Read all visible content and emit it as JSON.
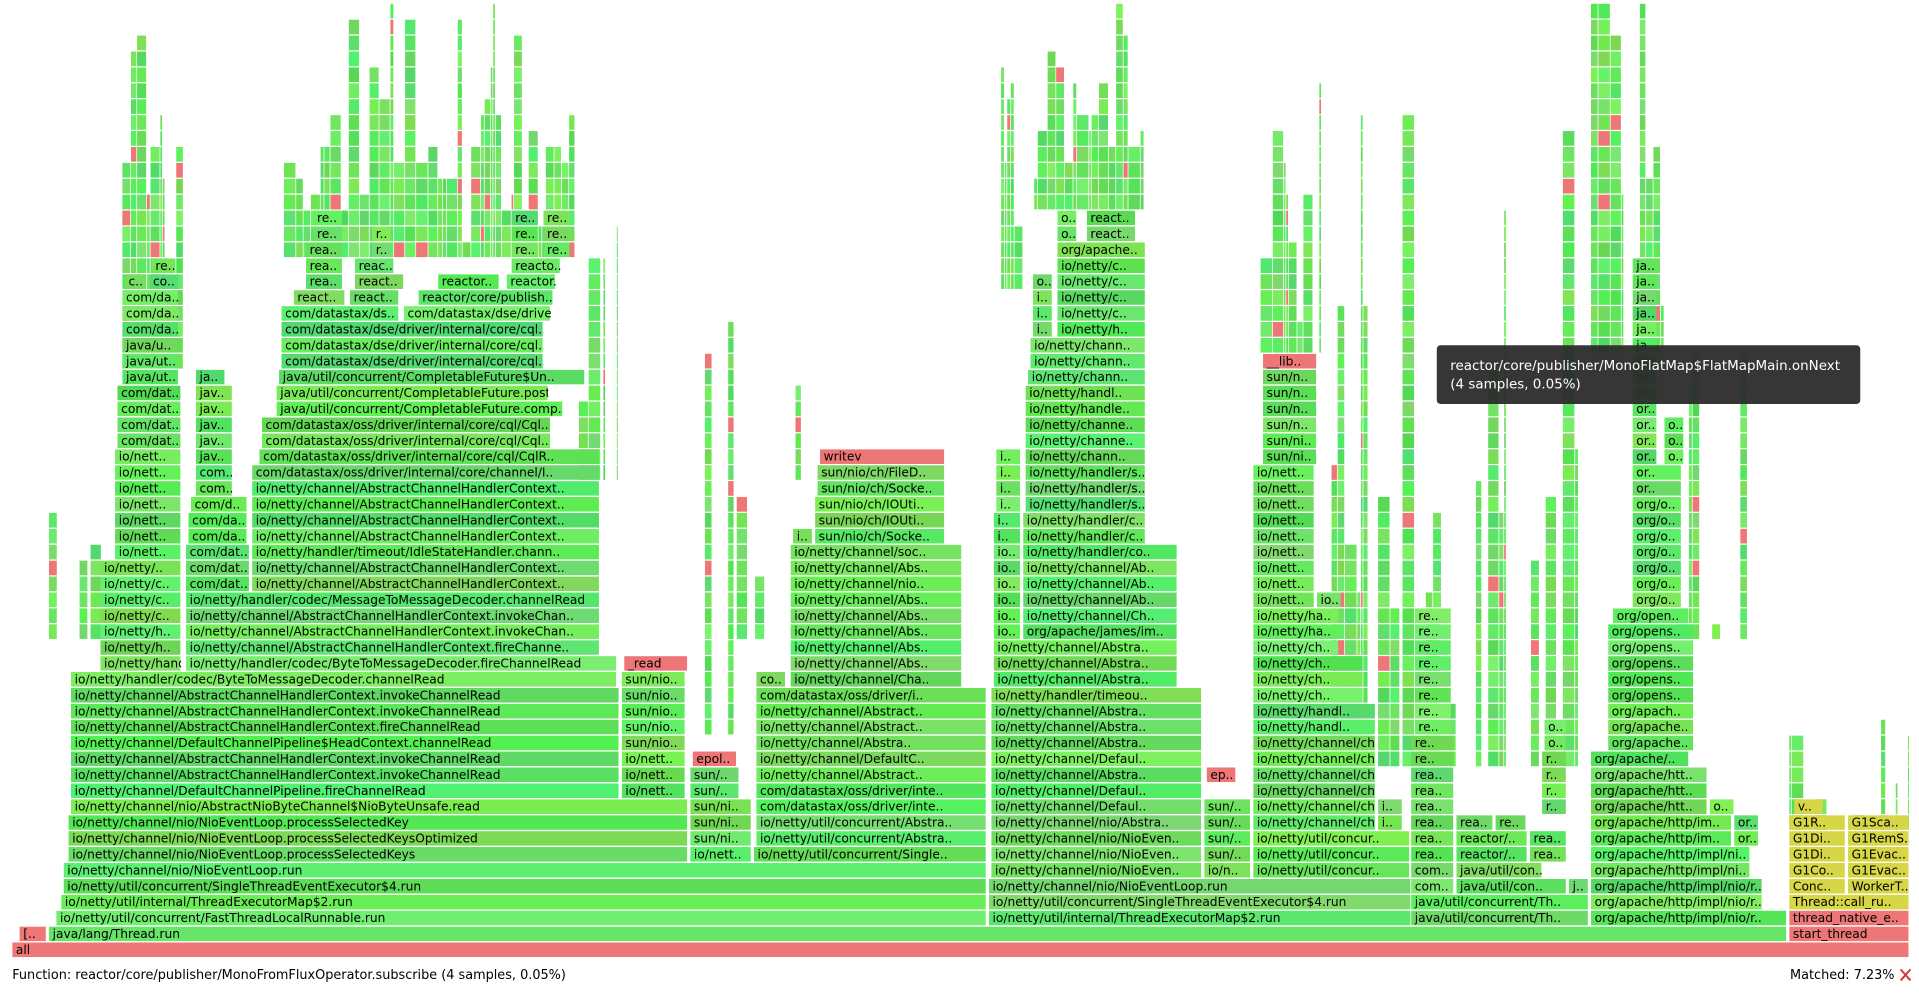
{
  "frames": [
    [
      "all"
    ],
    [
      "[..",
      "java/lang/Thread.run",
      "start_thread"
    ],
    [
      "io/netty/util/concurrent/FastThreadLocalRunnable.run",
      "io/netty/util/internal/ThreadExecutorMap$2.run",
      "java/util/concurrent/Th..",
      "org/apache/http/impl/nio/r..",
      "thread_native_e.."
    ],
    [
      "io/netty/util/internal/ThreadExecutorMap$2.run",
      "io/netty/util/concurrent/SingleThreadEventExecutor$4.run",
      "java/util/concurrent/Th..",
      "org/apache/http/impl/nio/r..",
      "Thread::call_ru.."
    ],
    [
      "io/netty/util/concurrent/SingleThreadEventExecutor$4.run",
      "io/netty/channel/nio/NioEventLoop.run",
      "com..",
      "java/util/con..",
      "j..",
      "org/apache/http/impl/nio/r..",
      "Conc..",
      "WorkerT.."
    ],
    [
      "io/netty/channel/nio/NioEventLoop.run",
      "io/netty/channel/nio/NioEven..",
      "io/n..",
      "io/netty/util/concur..",
      "com..",
      "java/util/con..",
      "org/apache/http/impl/ni..",
      "G1Co..",
      "G1Evac.."
    ],
    [
      "io/netty/channel/nio/NioEventLoop.processSelectedKeys",
      "io/nett..",
      "io/netty/util/concurrent/Single..",
      "io/netty/channel/nio/NioEven..",
      "sun/..",
      "io/netty/util/concur..",
      "rea..",
      "reactor/..",
      "rea..",
      "org/apache/http/impl/ni..",
      "G1Di..",
      "G1Evac.."
    ],
    [
      "io/netty/channel/nio/NioEventLoop.processSelectedKeysOptimized",
      "sun/ni..",
      "io/netty/util/concurrent/Abstra..",
      "io/netty/channel/nio/NioEven..",
      "sun/..",
      "io/netty/util/concur..",
      "rea..",
      "reactor/..",
      "rea..",
      "org/apache/http/im..",
      "or..",
      "G1Di..",
      "G1RemS.."
    ],
    [
      "io/netty/channel/nio/NioEventLoop.processSelectedKey",
      "sun/ni..",
      "io/netty/util/concurrent/Abstra..",
      "io/netty/channel/nio/Abstra..",
      "sun/..",
      "io/netty/channel/chann..",
      "i..",
      "rea..",
      "rea..",
      "re..",
      "org/apache/http/im..",
      "or..",
      "G1R..",
      "G1Sca.."
    ],
    [
      "io/netty/channel/nio/AbstractNioByteChannel$NioByteUnsafe.read",
      "sun/ni..",
      "com/datastax/oss/driver/inte..",
      "io/netty/channel/Defaul..",
      "sun/..",
      "io/netty/channel/chann..",
      "i..",
      "rea..",
      "r..",
      "org/apache/htt..",
      "o..",
      "v.."
    ],
    [
      "io/netty/channel/DefaultChannelPipeline.fireChannelRead",
      "io/nett..",
      "sun/..",
      "com/datastax/oss/driver/inte..",
      "io/netty/channel/Defaul..",
      "io/netty/channel/chann..",
      "rea..",
      "r..",
      "org/apache/htt.."
    ],
    [
      "io/netty/channel/AbstractChannelHandlerContext.invokeChannelRead",
      "io/nett..",
      "sun/..",
      "io/netty/channel/Abstract..",
      "io/netty/channel/Abstra..",
      "ep..",
      "io/netty/channel/chann..",
      "rea..",
      "r..",
      "org/apache/htt.."
    ],
    [
      "io/netty/channel/AbstractChannelHandlerContext.invokeChannelRead",
      "io/nett..",
      "epol..",
      "io/netty/channel/DefaultC..",
      "io/netty/channel/Defaul..",
      "io/netty/channel/chann..",
      "re..",
      "r..",
      "org/apache/.."
    ],
    [
      "io/netty/channel/DefaultChannelPipeline$HeadContext.channelRead",
      "sun/nio..",
      "io/netty/channel/Abstra..",
      "io/netty/channel/Abstra..",
      "io/netty/channel/chann..",
      "re..",
      "o..",
      "org/apache.."
    ],
    [
      "io/netty/channel/AbstractChannelHandlerContext.fireChannelRead",
      "sun/nio..",
      "io/netty/channel/Abstract..",
      "io/netty/channel/Abstra..",
      "io/netty/handl..",
      "re..",
      "o..",
      "org/apache.."
    ],
    [
      "io/netty/channel/AbstractChannelHandlerContext.invokeChannelRead",
      "sun/nio..",
      "io/netty/channel/Abstract..",
      "io/netty/channel/Abstra..",
      "io/netty/handl..",
      "re..",
      "org/apach.."
    ],
    [
      "io/netty/channel/AbstractChannelHandlerContext.invokeChannelRead",
      "sun/nio..",
      "com/datastax/oss/driver/i..",
      "io/netty/handler/timeou..",
      "io/netty/ch..",
      "re..",
      "org/opens.."
    ],
    [
      "io/netty/handler/codec/ByteToMessageDecoder.channelRead",
      "sun/nio..",
      "co..",
      "io/netty/channel/Cha..",
      "io/netty/channel/Abstra..",
      "io/netty/ch..",
      "re..",
      "org/opens.."
    ],
    [
      "io/netty/hand..",
      "io/netty/handler/codec/ByteToMessageDecoder.fireChannelRead",
      "_read",
      "io/netty/channel/Abs..",
      "io/netty/channel/Abstra..",
      "io/netty/ch..",
      "re..",
      "org/opens.."
    ],
    [
      "io/netty/h..",
      "io/netty/channel/AbstractChannelHandlerContext.fireChanne..",
      "io/netty/channel/Abs..",
      "io/netty/channel/Abstra..",
      "io/netty/ch..",
      "re..",
      "org/opens.."
    ],
    [
      "io/netty/h..",
      "io/netty/channel/AbstractChannelHandlerContext.invokeChan..",
      "io/netty/channel/Abs..",
      "io..",
      "org/apache/james/im..",
      "io/netty/ha..",
      "re..",
      "org/opens.."
    ],
    [
      "io/netty/c..",
      "io/netty/channel/AbstractChannelHandlerContext.invokeChan..",
      "io/netty/channel/Abs..",
      "io..",
      "io/netty/channel/Ch..",
      "io/netty/ha..",
      "re..",
      "org/open.."
    ],
    [
      "io/netty/c..",
      "io/netty/handler/codec/MessageToMessageDecoder.channelRead",
      "io/netty/channel/Abs..",
      "io..",
      "io/netty/channel/Ab..",
      "io/nett..",
      "io..",
      "org/o.."
    ],
    [
      "io/netty/c..",
      "com/dat..",
      "io/netty/channel/AbstractChannelHandlerContext..",
      "io/netty/channel/nio..",
      "io..",
      "io/netty/channel/Ab..",
      "io/nett..",
      "org/o.."
    ],
    [
      "io/netty/..",
      "com/dat..",
      "io/netty/channel/AbstractChannelHandlerContext..",
      "io/netty/channel/Abs..",
      "io..",
      "io/netty/channel/Ab..",
      "io/nett..",
      "org/o.."
    ],
    [
      "io/nett..",
      "com/dat..",
      "io/netty/handler/timeout/IdleStateHandler.chann..",
      "io/netty/channel/soc..",
      "io..",
      "io/netty/handler/co..",
      "io/nett..",
      "org/o.."
    ],
    [
      "io/nett..",
      "com/da..",
      "io/netty/channel/AbstractChannelHandlerContext..",
      "i..",
      "sun/nio/ch/Socke..",
      "i..",
      "io/netty/handler/c..",
      "io/nett..",
      "org/o.."
    ],
    [
      "io/nett..",
      "com/da..",
      "io/netty/channel/AbstractChannelHandlerContext..",
      "sun/nio/ch/IOUti..",
      "i..",
      "io/netty/handler/c..",
      "io/nett..",
      "org/o.."
    ],
    [
      "io/nett..",
      "com/d..",
      "io/netty/channel/AbstractChannelHandlerContext..",
      "sun/nio/ch/IOUti..",
      "i..",
      "io/netty/handler/s..",
      "io/nett..",
      "org/o.."
    ],
    [
      "io/nett..",
      "com..",
      "io/netty/channel/AbstractChannelHandlerContext..",
      "sun/nio/ch/Socke..",
      "i..",
      "io/netty/handler/s..",
      "io/nett..",
      "or.."
    ],
    [
      "io/nett..",
      "com..",
      "com/datastax/oss/driver/internal/core/channel/I..",
      "sun/nio/ch/FileD..",
      "i..",
      "io/netty/handler/s..",
      "io/nett..",
      "or.."
    ],
    [
      "io/nett..",
      "jav..",
      "com/datastax/oss/driver/internal/core/cql/CqlR..",
      "writev",
      "i..",
      "io/netty/chann..",
      "sun/ni..",
      "or..",
      "o.."
    ],
    [
      "com/dat..",
      "jav..",
      "com/datastax/oss/driver/internal/core/cql/Cql..",
      "io/netty/channe..",
      "sun/ni..",
      "or..",
      "o.."
    ],
    [
      "com/dat..",
      "jav..",
      "com/datastax/oss/driver/internal/core/cql/Cql..",
      "io/netty/channe..",
      "sun/n..",
      "or..",
      "o.."
    ],
    [
      "com/dat..",
      "jav..",
      "java/util/concurrent/CompletableFuture.comp..",
      "io/netty/handle..",
      "sun/n..",
      "or.."
    ],
    [
      "com/dat..",
      "jav..",
      "java/util/concurrent/CompletableFuture.post..",
      "io/netty/handl..",
      "sun/n..",
      "or.."
    ],
    [
      "java/ut..",
      "ja..",
      "java/util/concurrent/CompletableFuture$Un..",
      "io/netty/chann..",
      "sun/n..",
      "or.."
    ],
    [
      "java/ut..",
      "com/datastax/dse/driver/internal/core/cql..",
      "io/netty/chann..",
      "__lib..",
      "ja.."
    ],
    [
      "java/u..",
      "com/datastax/dse/driver/internal/core/cql..",
      "io/netty/chann..",
      "ja.."
    ],
    [
      "com/da..",
      "com/datastax/dse/driver/internal/core/cql..",
      "i..",
      "io/netty/h..",
      "ja.."
    ],
    [
      "com/da..",
      "com/datastax/ds..",
      "com/datastax/dse/drive..",
      "i..",
      "io/netty/c..",
      "ja.."
    ],
    [
      "com/da..",
      "react..",
      "react..",
      "reactor/core/publish..",
      "i..",
      "io/netty/c..",
      "ja.."
    ],
    [
      "c..",
      "co..",
      "rea..",
      "react..",
      "reactor..",
      "reactor..",
      "o..",
      "io/netty/c..",
      "ja.."
    ],
    [
      "re..",
      "rea..",
      "reac..",
      "reacto..",
      "io/netty/c..",
      "ja.."
    ],
    [
      "rea..",
      "r..",
      "re..",
      "re..",
      "org/apache.."
    ],
    [
      "re..",
      "r..",
      "re..",
      "re..",
      "o..",
      "react.."
    ],
    [
      "re..",
      "re..",
      "re..",
      "o..",
      "react.."
    ]
  ],
  "tooltip": {
    "name": "reactor/core/publisher/MonoFlatMap$FlatMapMain.onNext",
    "detail": "(4 samples, 0.05%)"
  },
  "status": {
    "function": "Function: reactor/core/publisher/MonoFromFluxOperator.subscribe (4 samples, 0.05%)",
    "matched": "Matched: 7.23%"
  }
}
